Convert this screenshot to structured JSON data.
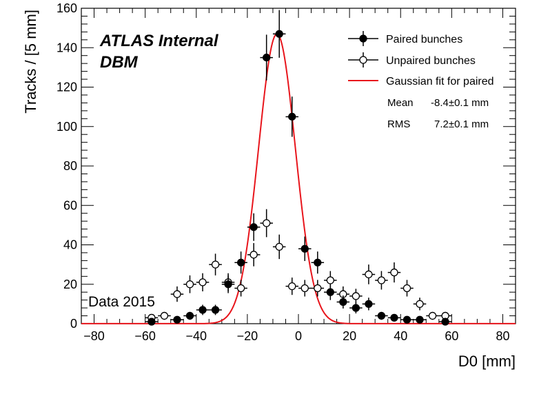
{
  "chart_data": {
    "type": "scatter",
    "xlabel": "D0 [mm]",
    "ylabel": "Tracks / [5 mm]",
    "xlim": [
      -85,
      85
    ],
    "ylim": [
      0,
      160
    ],
    "xticks": [
      -80,
      -60,
      -40,
      -20,
      0,
      20,
      40,
      60,
      80
    ],
    "yticks": [
      0,
      20,
      40,
      60,
      80,
      100,
      120,
      140,
      160
    ],
    "bin_width": 5,
    "annotations": {
      "experiment": "ATLAS Internal",
      "detector": "DBM",
      "dataset": "Data 2015"
    },
    "legend": {
      "placement": "top-right",
      "paired_label": "Paired bunches",
      "unpaired_label": "Unpaired bunches",
      "fit_label": "Gaussian fit for paired",
      "mean_label": "Mean",
      "mean_value": "-8.4±0.1 mm",
      "rms_label": "RMS",
      "rms_value": "7.2±0.1 mm"
    },
    "fit": {
      "mean": -8.4,
      "sigma": 7.2,
      "amplitude": 147,
      "color": "#e8141b"
    },
    "series": [
      {
        "name": "Paired bunches",
        "marker": "filled-circle",
        "x": [
          -57.5,
          -47.5,
          -42.5,
          -37.5,
          -32.5,
          -27.5,
          -22.5,
          -17.5,
          -12.5,
          -7.5,
          -2.5,
          2.5,
          7.5,
          12.5,
          17.5,
          22.5,
          27.5,
          32.5,
          37.5,
          42.5,
          47.5,
          57.5
        ],
        "y": [
          1,
          2,
          4,
          7,
          7,
          20,
          31,
          49,
          135,
          147,
          105,
          38,
          31,
          16,
          11,
          8,
          10,
          4,
          3,
          2,
          2,
          1
        ],
        "err": [
          1,
          1.4,
          2,
          2.6,
          2.6,
          4.5,
          5.6,
          7,
          11.6,
          12.1,
          10.2,
          6.2,
          5.6,
          4,
          3.3,
          2.8,
          3.2,
          2,
          1.7,
          1.4,
          1.4,
          1
        ]
      },
      {
        "name": "Unpaired bunches",
        "marker": "open-circle",
        "x": [
          -57.5,
          -52.5,
          -47.5,
          -42.5,
          -37.5,
          -32.5,
          -27.5,
          -22.5,
          -17.5,
          -12.5,
          -7.5,
          -2.5,
          2.5,
          7.5,
          12.5,
          17.5,
          22.5,
          27.5,
          32.5,
          37.5,
          42.5,
          47.5,
          52.5,
          57.5
        ],
        "y": [
          3,
          4,
          15,
          20,
          21,
          30,
          21,
          18,
          35,
          51,
          39,
          19,
          18,
          18,
          22,
          15,
          14,
          25,
          22,
          26,
          18,
          10,
          4,
          4
        ],
        "err": [
          1.7,
          2,
          3.9,
          4.5,
          4.6,
          5.5,
          4.6,
          4.2,
          5.9,
          7.1,
          6.2,
          4.4,
          4.2,
          4.2,
          4.7,
          3.9,
          3.7,
          5,
          4.7,
          5.1,
          4.2,
          3.2,
          2,
          2
        ]
      }
    ]
  }
}
